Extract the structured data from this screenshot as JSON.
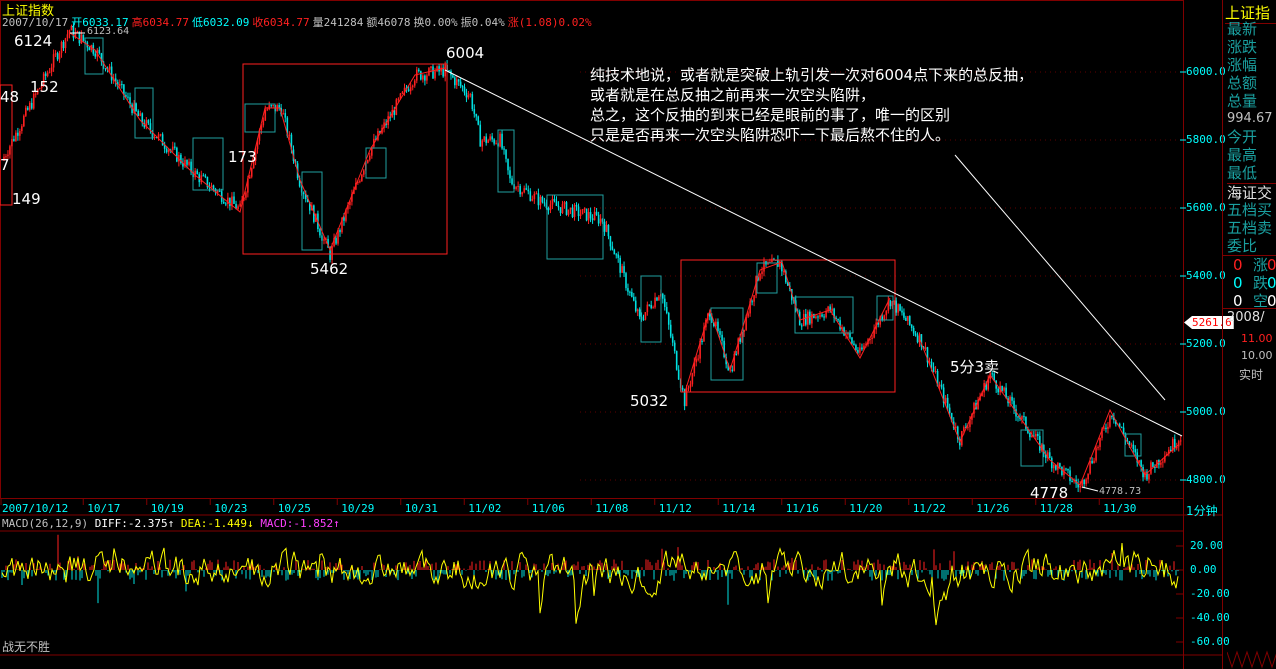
{
  "header": {
    "title": "上证指数",
    "date": "2007/10/17",
    "open": "开6033.17",
    "high": "高6034.77",
    "low": "低6032.09",
    "close": "收6034.77",
    "volume": "量241284",
    "amount": "额46078",
    "turnover": "换0.00%",
    "amplitude": "振0.04%",
    "change": "涨(1.08)0.02%"
  },
  "annotation": {
    "lines": [
      "纯技术地说，或者就是突破上轨引发一次对6004点下来的总反抽，",
      "或者就是在总反抽之前再来一次空头陷阱，",
      "总之，这个反抽的到来已经是眼前的事了，唯一的区别",
      "只是是否再来一次空头陷阱恐吓一下最后熬不住的人。"
    ]
  },
  "point_labels": {
    "p6124": "6124",
    "p6123": "6123.64",
    "p48": "48",
    "p152": "152",
    "p7": "7",
    "p149": "149",
    "p173": "173",
    "p6004": "6004",
    "p5462": "5462",
    "p5032": "5032",
    "p53": "5分3卖",
    "p4778": "4778",
    "p4778b": "4778.73"
  },
  "current_price": "5261.6",
  "macd": {
    "name": "MACD(26,12,9)",
    "diff": "DIFF:-2.375↑",
    "dea": "DEA:-1.449↓",
    "macd": "MACD:-1.852↑",
    "period": "1分钟",
    "yticks": [
      "20.00",
      "0.00",
      "-20.00",
      "-40.00",
      "-60.00"
    ]
  },
  "footer": "战无不胜",
  "side": {
    "title": "上证指",
    "items": [
      "最新",
      "涨跌",
      "涨幅",
      "总额",
      "总量"
    ],
    "total_volume": "994.67",
    "items2": [
      "今开",
      "最高",
      "最低"
    ],
    "exchange": "海证交",
    "items3": [
      "五档买",
      "五档卖",
      "委比"
    ],
    "counts": [
      {
        "a": "0",
        "b": "涨",
        "c": "0"
      },
      {
        "a": "0",
        "b": "跌",
        "c": "0"
      },
      {
        "a": "0",
        "b": "空",
        "c": "0"
      }
    ],
    "year": "2008/",
    "vol_ticks": [
      "11.00",
      "10.00"
    ],
    "realtime": "实时"
  },
  "colors": {
    "up": "#ff2020",
    "down": "#00e0e0",
    "axis": "#800000",
    "text_axis": "#00ffff"
  },
  "chart_data": {
    "type": "candlestick-line",
    "title": "上证指数",
    "ylim": [
      4750,
      6180
    ],
    "yticks": [
      6000.0,
      5800.0,
      5600.0,
      5400.0,
      5200.0,
      5000.0,
      4800.0
    ],
    "xticks": [
      "2007/10/12",
      "10/17",
      "10/19",
      "10/23",
      "10/25",
      "10/29",
      "10/31",
      "11/02",
      "11/06",
      "11/08",
      "11/12",
      "11/14",
      "11/16",
      "11/20",
      "11/22",
      "11/26",
      "11/28",
      "11/30"
    ],
    "series": [
      {
        "points": [
          [
            "10/12 09:30",
            5740
          ],
          [
            "10/16 10:00",
            6124
          ],
          [
            "10/16 14:45",
            6065
          ],
          [
            "10/18 10:55",
            5860
          ],
          [
            "10/22 09:50",
            5700
          ],
          [
            "10/23 13:00",
            5595
          ],
          [
            "10/24 10:40",
            5890
          ],
          [
            "10/24 14:10",
            5895
          ],
          [
            "10/25 11:00",
            5680
          ],
          [
            "10/26 10:50",
            5462
          ],
          [
            "10/29 13:20",
            5770
          ],
          [
            "10/30 15:00",
            5990
          ],
          [
            "10/31 14:50",
            6004
          ],
          [
            "11/01 14:00",
            5930
          ],
          [
            "11/02 09:45",
            5800
          ],
          [
            "11/02 13:45",
            5800
          ],
          [
            "11/05 09:30",
            5680
          ],
          [
            "11/05 14:50",
            5620
          ],
          [
            "11/07 14:40",
            5565
          ],
          [
            "11/09 09:50",
            5270
          ],
          [
            "11/09 14:00",
            5360
          ],
          [
            "11/12 13:00",
            5032
          ],
          [
            "11/13 10:40",
            5300
          ],
          [
            "11/13 14:45",
            5120
          ],
          [
            "11/14 14:30",
            5420
          ],
          [
            "11/15 13:00",
            5440
          ],
          [
            "11/16 10:00",
            5270
          ],
          [
            "11/19 09:50",
            5300
          ],
          [
            "11/20 09:35",
            5170
          ],
          [
            "11/20 14:55",
            5330
          ],
          [
            "11/21 14:50",
            5210
          ],
          [
            "11/23 10:10",
            4920
          ],
          [
            "11/26 10:00",
            5110
          ],
          [
            "11/28 09:30",
            4860
          ],
          [
            "11/28 14:50",
            4778.73
          ],
          [
            "11/29 14:50",
            5000
          ],
          [
            "12/03 09:30",
            4815
          ],
          [
            "12/04 10:00",
            4930
          ]
        ]
      }
    ],
    "macd_ylim": [
      -65,
      30
    ]
  }
}
